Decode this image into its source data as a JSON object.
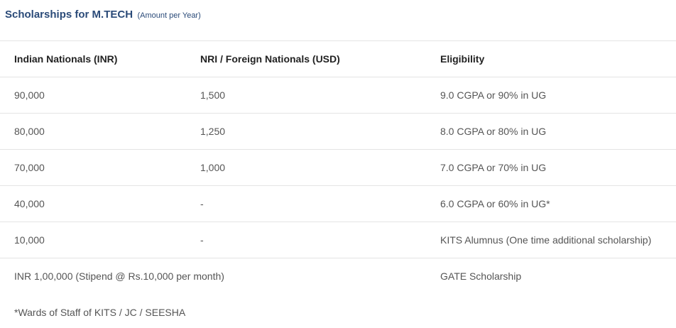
{
  "heading": {
    "title": "Scholarships for M.TECH",
    "subtitle": "(Amount per Year)"
  },
  "table": {
    "headers": [
      "Indian Nationals (INR)",
      "NRI / Foreign Nationals (USD)",
      "Eligibility"
    ],
    "rows": [
      [
        "90,000",
        "1,500",
        "9.0 CGPA or 90% in UG"
      ],
      [
        "80,000",
        "1,250",
        "8.0 CGPA or 80% in UG"
      ],
      [
        "70,000",
        "1,000",
        "7.0 CGPA or 70% in UG"
      ],
      [
        "40,000",
        "-",
        "6.0 CGPA or 60% in UG*"
      ],
      [
        "10,000",
        "-",
        "KITS Alumnus (One time additional scholarship)"
      ],
      [
        "INR 1,00,000 (Stipend @ Rs.10,000 per month)",
        "GATE Scholarship"
      ]
    ]
  },
  "footnote": "*Wards of Staff of KITS / JC / SEESHA",
  "colors": {
    "heading": "#2a4a78",
    "border": "#e4e4e4",
    "text": "#555555"
  }
}
